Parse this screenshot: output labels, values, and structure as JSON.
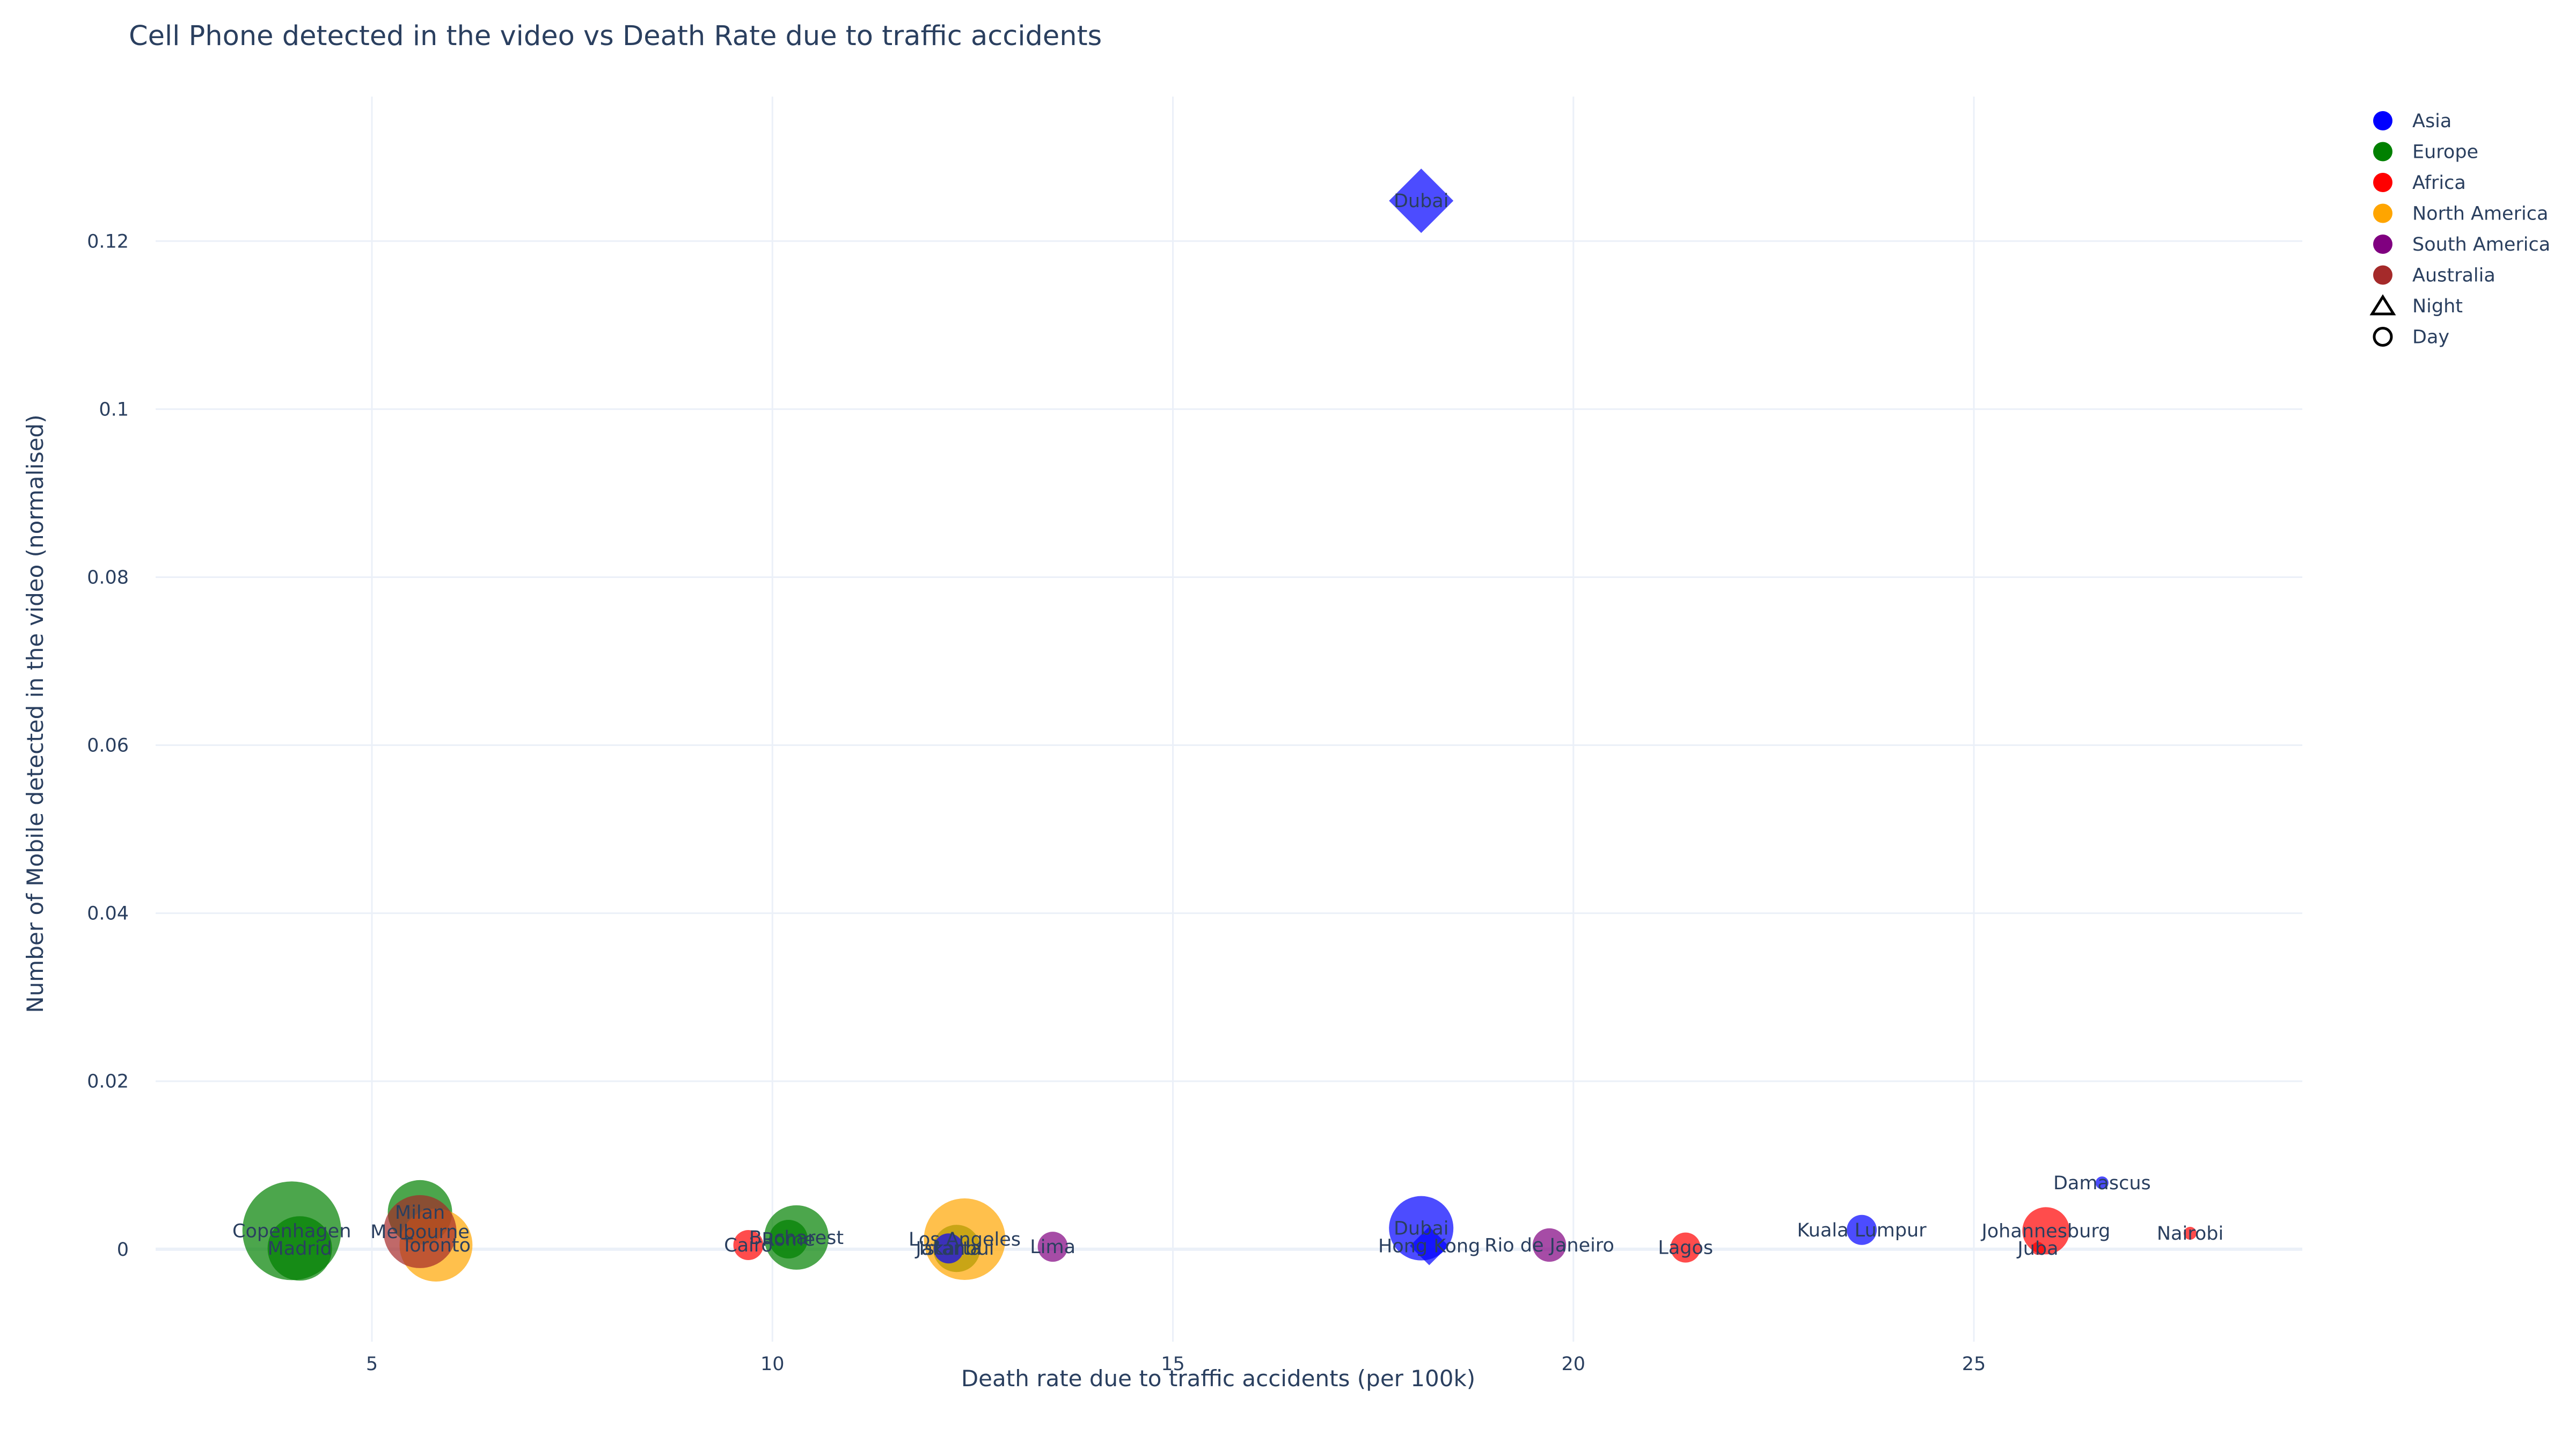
{
  "chart_data": {
    "type": "scatter",
    "title": "Cell Phone detected in the video vs Death Rate due to traffic accidents",
    "xlabel": "Death rate due to traffic accidents (per 100k)",
    "ylabel": "Number of Mobile detected in the video (normalised)",
    "xlim": [
      2.3,
      29.1
    ],
    "ylim": [
      -0.011,
      0.1372
    ],
    "xticks": [
      {
        "value": 5,
        "label": "5"
      },
      {
        "value": 10,
        "label": "10"
      },
      {
        "value": 15,
        "label": "15"
      },
      {
        "value": 20,
        "label": "20"
      },
      {
        "value": 25,
        "label": "25"
      }
    ],
    "yticks": [
      {
        "value": 0,
        "label": "0"
      },
      {
        "value": 0.02,
        "label": "0.02"
      },
      {
        "value": 0.04,
        "label": "0.04"
      },
      {
        "value": 0.06,
        "label": "0.06"
      },
      {
        "value": 0.08,
        "label": "0.08"
      },
      {
        "value": 0.1,
        "label": "0.1"
      },
      {
        "value": 0.12,
        "label": "0.12"
      }
    ],
    "grid": true,
    "legend_position": "top-right",
    "continent_colors": {
      "Asia": "#0000ff",
      "Europe": "#008000",
      "Africa": "#ff0000",
      "North America": "#ffa500",
      "South America": "#800080",
      "Australia": "#a52a2a"
    },
    "legend": [
      {
        "label": "Asia",
        "marker": "circle",
        "color": "#0000ff"
      },
      {
        "label": "Europe",
        "marker": "circle",
        "color": "#008000"
      },
      {
        "label": "Africa",
        "marker": "circle",
        "color": "#ff0000"
      },
      {
        "label": "North America",
        "marker": "circle",
        "color": "#ffa500"
      },
      {
        "label": "South America",
        "marker": "circle",
        "color": "#800080"
      },
      {
        "label": "Australia",
        "marker": "circle",
        "color": "#a52a2a"
      },
      {
        "label": "Night",
        "marker": "triangle-open",
        "color": "#000000"
      },
      {
        "label": "Day",
        "marker": "circle-open",
        "color": "#000000"
      }
    ],
    "points": [
      {
        "city": "Dubai",
        "continent": "Asia",
        "time": "Night",
        "x": 18.1,
        "y": 0.1248,
        "size": 3
      },
      {
        "city": "Dubai",
        "continent": "Asia",
        "time": "Day",
        "x": 18.1,
        "y": 0.0025,
        "size": 3
      },
      {
        "city": "Hong Kong",
        "continent": "Asia",
        "time": "Night",
        "x": 18.2,
        "y": 0.0004,
        "size": 1.5
      },
      {
        "city": "Kuala Lumpur",
        "continent": "Asia",
        "time": "Day",
        "x": 23.6,
        "y": 0.0023,
        "size": 1
      },
      {
        "city": "Damascus",
        "continent": "Asia",
        "time": "Day",
        "x": 26.6,
        "y": 0.0079,
        "size": 0
      },
      {
        "city": "Copenhagen",
        "continent": "Europe",
        "time": "Day",
        "x": 4.0,
        "y": 0.0022,
        "size": 5
      },
      {
        "city": "Madrid",
        "continent": "Europe",
        "time": "Day",
        "x": 4.1,
        "y": 0.0001,
        "size": 3
      },
      {
        "city": "Milan",
        "continent": "Europe",
        "time": "Day",
        "x": 5.6,
        "y": 0.0044,
        "size": 3
      },
      {
        "city": "Bucharest",
        "continent": "Europe",
        "time": "Day",
        "x": 10.3,
        "y": 0.0014,
        "size": 3
      },
      {
        "city": "Rome",
        "continent": "Europe",
        "time": "Day",
        "x": 10.2,
        "y": 0.0012,
        "size": 1.5
      },
      {
        "city": "Istanbul",
        "continent": "Europe",
        "time": "Day",
        "x": 12.3,
        "y": 0.0001,
        "size": 2
      },
      {
        "city": "Cairo",
        "continent": "Africa",
        "time": "Day",
        "x": 9.7,
        "y": 0.0005,
        "size": 1
      },
      {
        "city": "Lagos",
        "continent": "Africa",
        "time": "Day",
        "x": 21.4,
        "y": 0.0002,
        "size": 1
      },
      {
        "city": "Johannesburg",
        "continent": "Africa",
        "time": "Day",
        "x": 25.9,
        "y": 0.0022,
        "size": 2
      },
      {
        "city": "Juba",
        "continent": "Africa",
        "time": "Day",
        "x": 25.8,
        "y": 0.0001,
        "size": 0
      },
      {
        "city": "Nairobi",
        "continent": "Africa",
        "time": "Day",
        "x": 27.7,
        "y": 0.0019,
        "size": 0
      },
      {
        "city": "Los Angeles",
        "continent": "North America",
        "time": "Day",
        "x": 12.4,
        "y": 0.0012,
        "size": 4
      },
      {
        "city": "Toronto",
        "continent": "North America",
        "time": "Day",
        "x": 5.8,
        "y": 0.0005,
        "size": 3.5
      },
      {
        "city": "Jakarta",
        "continent": "Asia",
        "time": "Day",
        "x": 12.2,
        "y": 0.0001,
        "size": 1
      },
      {
        "city": "Lima",
        "continent": "South America",
        "time": "Day",
        "x": 13.5,
        "y": 0.0003,
        "size": 1
      },
      {
        "city": "Rio de Janeiro",
        "continent": "South America",
        "time": "Day",
        "x": 19.7,
        "y": 0.0005,
        "size": 1.2
      },
      {
        "city": "Melbourne",
        "continent": "Australia",
        "time": "Day",
        "x": 5.6,
        "y": 0.0021,
        "size": 3.5
      }
    ]
  }
}
